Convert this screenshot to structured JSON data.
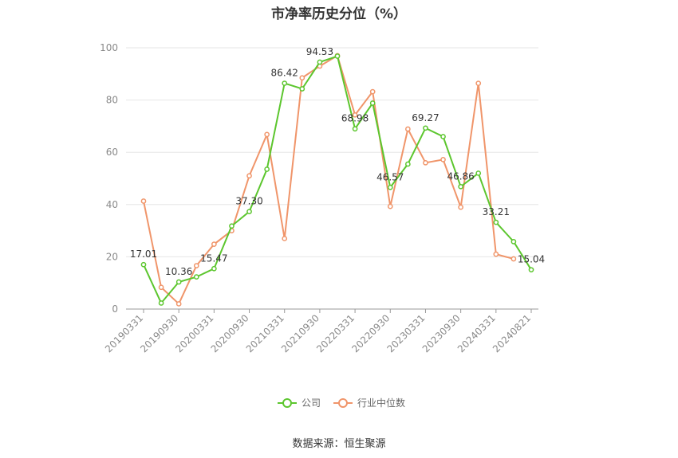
{
  "chart_data": {
    "type": "line",
    "title": "市净率历史分位（%）",
    "source": "数据来源：恒生聚源",
    "ylim": [
      0,
      100
    ],
    "yticks": [
      0,
      20,
      40,
      60,
      80,
      100
    ],
    "x": [
      "20190331",
      "20190630",
      "20190930",
      "20191231",
      "20200331",
      "20200630",
      "20200930",
      "20201231",
      "20210331",
      "20210630",
      "20210930",
      "20211231",
      "20220331",
      "20220630",
      "20220930",
      "20221231",
      "20230331",
      "20230630",
      "20230930",
      "20231231",
      "20240331",
      "20240630",
      "20240821"
    ],
    "xtick_labels": [
      "20190331",
      "20190930",
      "20200331",
      "20200930",
      "20210331",
      "20210930",
      "20220331",
      "20220930",
      "20230331",
      "20230930",
      "20240331",
      "20240821"
    ],
    "series": [
      {
        "name": "公司",
        "color": "#5cc62e",
        "values": [
          17.01,
          2.3,
          10.36,
          12.3,
          15.47,
          31.8,
          37.3,
          53.5,
          86.42,
          84.3,
          94.53,
          96.8,
          68.98,
          78.8,
          46.57,
          55.5,
          69.27,
          66.0,
          46.86,
          52.0,
          33.21,
          25.8,
          15.04
        ],
        "labels": {
          "0": "17.01",
          "2": "10.36",
          "4": "15.47",
          "6": "37.30",
          "8": "86.42",
          "10": "94.53",
          "12": "68.98",
          "14": "46.57",
          "16": "69.27",
          "18": "46.86",
          "20": "33.21",
          "22": "15.04"
        }
      },
      {
        "name": "行业中位数",
        "color": "#f0956a",
        "values": [
          41.3,
          8.3,
          2.0,
          16.6,
          24.8,
          30.0,
          51.0,
          66.8,
          27.0,
          88.5,
          93.0,
          97.0,
          74.3,
          83.2,
          39.3,
          68.9,
          56.0,
          57.2,
          39.0,
          86.4,
          21.0,
          19.2,
          null
        ]
      }
    ],
    "legend_position": "bottom-center"
  }
}
